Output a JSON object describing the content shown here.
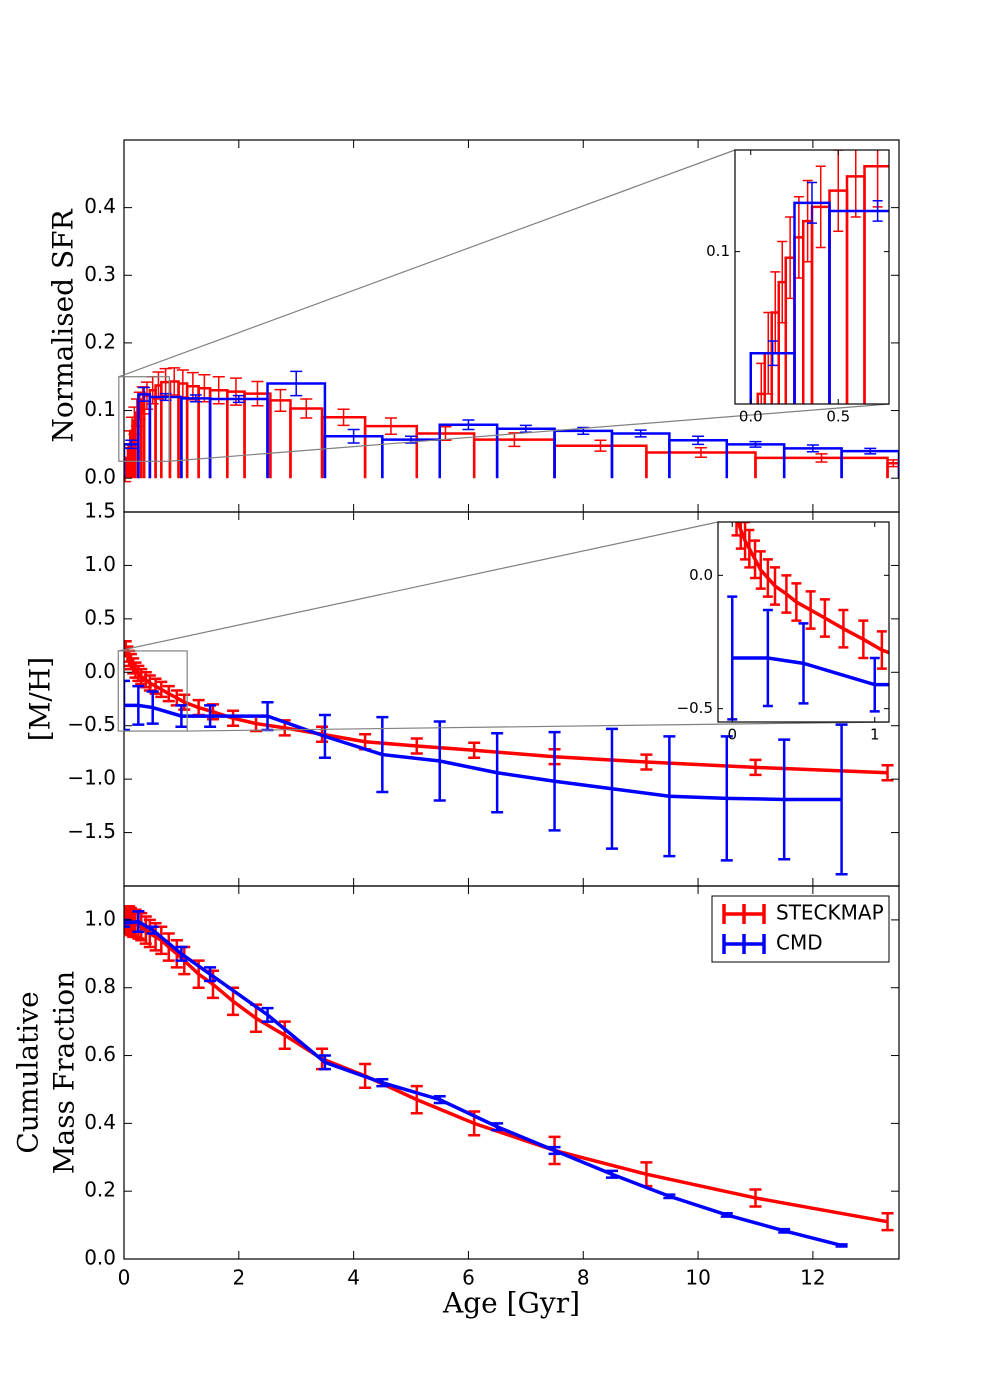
{
  "chart_data": [
    {
      "type": "step",
      "ylabel": "Normalised SFR",
      "xlim": [
        0,
        13.5
      ],
      "ylim": [
        -0.05,
        0.5
      ],
      "yticks": [
        {
          "value": 0,
          "label": "0.0"
        },
        0.1,
        0.2,
        0.3,
        0.4
      ],
      "series": [
        {
          "color": "#ff0000",
          "bins": [
            0,
            0.04,
            0.08,
            0.12,
            0.16,
            0.2,
            0.25,
            0.3,
            0.35,
            0.45,
            0.55,
            0.65,
            0.8,
            0.95,
            1.1,
            1.3,
            1.5,
            1.8,
            2.1,
            2.55,
            2.9,
            3.45,
            4.2,
            5.1,
            6.1,
            7.5,
            9.1,
            11.0,
            13.3,
            13.5
          ],
          "values": [
            0.005,
            0.03,
            0.05,
            0.07,
            0.085,
            0.097,
            0.107,
            0.115,
            0.122,
            0.13,
            0.137,
            0.142,
            0.143,
            0.14,
            0.136,
            0.133,
            0.13,
            0.128,
            0.125,
            0.115,
            0.103,
            0.09,
            0.077,
            0.066,
            0.057,
            0.048,
            0.038,
            0.03,
            0.022
          ],
          "errors": [
            0.01,
            0.015,
            0.02,
            0.02,
            0.02,
            0.02,
            0.02,
            0.02,
            0.02,
            0.02,
            0.02,
            0.02,
            0.02,
            0.02,
            0.02,
            0.02,
            0.02,
            0.02,
            0.018,
            0.016,
            0.014,
            0.012,
            0.012,
            0.01,
            0.01,
            0.008,
            0.007,
            0.006,
            0.005
          ]
        },
        {
          "color": "#0000ff",
          "bins": [
            0,
            0.25,
            0.45,
            1.0,
            1.5,
            2.5,
            3.5,
            4.5,
            5.5,
            6.5,
            7.5,
            8.5,
            9.5,
            10.5,
            11.5,
            12.5,
            13.5
          ],
          "values": [
            0.05,
            0.124,
            0.12,
            0.118,
            0.117,
            0.14,
            0.062,
            0.057,
            0.079,
            0.073,
            0.07,
            0.066,
            0.056,
            0.05,
            0.044,
            0.04
          ],
          "errors": [
            0.006,
            0.01,
            0.005,
            0.005,
            0.005,
            0.018,
            0.01,
            0.005,
            0.007,
            0.005,
            0.005,
            0.005,
            0.006,
            0.004,
            0.005,
            0.004
          ]
        }
      ],
      "inset": {
        "xlim": [
          -0.09,
          0.79
        ],
        "ylim": [
          0.025,
          0.15
        ],
        "xticks": [
          {
            "value": 0,
            "label": "0.0"
          },
          0.5
        ],
        "yticks": [
          0.1
        ]
      }
    },
    {
      "type": "line",
      "ylabel": "[M/H]",
      "xlim": [
        0,
        13.5
      ],
      "ylim": [
        -2.0,
        1.5
      ],
      "yticks": [
        {
          "value": -1.5,
          "label": "−1.5"
        },
        {
          "value": -1,
          "label": "−1.0"
        },
        {
          "value": -0.5,
          "label": "−0.5"
        },
        {
          "value": 0,
          "label": "0.0"
        },
        0.5,
        {
          "value": 1,
          "label": "1.0"
        },
        1.5
      ],
      "series": [
        {
          "color": "#ff0000",
          "x": [
            0.03,
            0.06,
            0.09,
            0.12,
            0.16,
            0.2,
            0.25,
            0.3,
            0.38,
            0.45,
            0.55,
            0.65,
            0.78,
            0.92,
            1.05,
            1.3,
            1.55,
            1.9,
            2.3,
            2.8,
            3.45,
            4.2,
            5.1,
            6.1,
            7.5,
            9.1,
            11.0,
            13.3
          ],
          "values": [
            0.22,
            0.17,
            0.13,
            0.1,
            0.06,
            0.02,
            -0.01,
            -0.04,
            -0.07,
            -0.1,
            -0.13,
            -0.16,
            -0.2,
            -0.24,
            -0.28,
            -0.33,
            -0.37,
            -0.43,
            -0.48,
            -0.52,
            -0.58,
            -0.65,
            -0.69,
            -0.73,
            -0.79,
            -0.84,
            -0.89,
            -0.94
          ],
          "errors": [
            0.07,
            0.07,
            0.07,
            0.07,
            0.07,
            0.07,
            0.07,
            0.07,
            0.07,
            0.07,
            0.07,
            0.07,
            0.07,
            0.07,
            0.07,
            0.07,
            0.07,
            0.07,
            0.07,
            0.07,
            0.07,
            0.07,
            0.07,
            0.07,
            0.07,
            0.07,
            0.07,
            0.07
          ]
        },
        {
          "color": "#0000ff",
          "x": [
            0,
            0.25,
            0.5,
            1.0,
            1.5,
            2.5,
            3.5,
            4.5,
            5.5,
            6.5,
            7.5,
            8.5,
            9.5,
            10.5,
            11.5,
            12.5
          ],
          "values": [
            -0.31,
            -0.31,
            -0.33,
            -0.41,
            -0.41,
            -0.41,
            -0.6,
            -0.77,
            -0.83,
            -0.94,
            -1.02,
            -1.09,
            -1.16,
            -1.18,
            -1.19,
            -1.19
          ],
          "errors": [
            0.23,
            0.18,
            0.15,
            0.1,
            0.1,
            0.13,
            0.2,
            0.35,
            0.37,
            0.37,
            0.46,
            0.56,
            0.56,
            0.58,
            0.56,
            0.7
          ]
        }
      ],
      "inset": {
        "xlim": [
          -0.1,
          1.1
        ],
        "ylim": [
          -0.55,
          0.2
        ],
        "xticks": [
          0,
          1
        ],
        "yticks": [
          {
            "value": -0.5,
            "label": "−0.5"
          },
          {
            "value": 0,
            "label": "0.0"
          }
        ]
      }
    },
    {
      "type": "line",
      "ylabel": [
        "Cumulative",
        "Mass Fraction"
      ],
      "xlabel": "Age [Gyr]",
      "xlim": [
        0,
        13.5
      ],
      "ylim": [
        0,
        1.1
      ],
      "xticks": [
        0,
        2,
        4,
        6,
        8,
        10,
        12
      ],
      "yticks": [
        {
          "value": 0,
          "label": "0.0"
        },
        0.2,
        0.4,
        0.6,
        0.8,
        {
          "value": 1,
          "label": "1.0"
        }
      ],
      "legend": "upper right",
      "series": [
        {
          "name": "STECKMAP",
          "color": "#ff0000",
          "x": [
            0.03,
            0.06,
            0.09,
            0.12,
            0.16,
            0.2,
            0.25,
            0.3,
            0.38,
            0.45,
            0.55,
            0.65,
            0.78,
            0.92,
            1.05,
            1.3,
            1.55,
            1.9,
            2.3,
            2.8,
            3.45,
            4.2,
            5.1,
            6.1,
            7.5,
            9.1,
            11.0,
            13.3
          ],
          "values": [
            1.0,
            1.0,
            1.0,
            0.995,
            0.99,
            0.99,
            0.985,
            0.98,
            0.97,
            0.96,
            0.95,
            0.94,
            0.92,
            0.9,
            0.88,
            0.84,
            0.81,
            0.76,
            0.71,
            0.66,
            0.59,
            0.54,
            0.47,
            0.4,
            0.32,
            0.25,
            0.18,
            0.11
          ],
          "errors": [
            0.035,
            0.04,
            0.04,
            0.04,
            0.04,
            0.04,
            0.04,
            0.04,
            0.04,
            0.04,
            0.04,
            0.04,
            0.04,
            0.04,
            0.04,
            0.04,
            0.04,
            0.04,
            0.04,
            0.04,
            0.03,
            0.035,
            0.04,
            0.035,
            0.04,
            0.035,
            0.025,
            0.025
          ]
        },
        {
          "name": "CMD",
          "color": "#0000ff",
          "x": [
            0,
            0.25,
            0.5,
            1.0,
            1.5,
            2.5,
            3.5,
            4.5,
            5.5,
            6.5,
            7.5,
            8.5,
            9.5,
            10.5,
            11.5,
            12.5
          ],
          "values": [
            0.99,
            0.995,
            0.97,
            0.9,
            0.84,
            0.72,
            0.58,
            0.52,
            0.47,
            0.39,
            0.32,
            0.25,
            0.185,
            0.13,
            0.083,
            0.04
          ],
          "errors": [
            0.01,
            0.03,
            0.01,
            0.02,
            0.02,
            0.02,
            0.02,
            0.01,
            0.01,
            0.01,
            0.01,
            0.01,
            0.005,
            0.005,
            0.005,
            0.003
          ]
        }
      ]
    }
  ]
}
